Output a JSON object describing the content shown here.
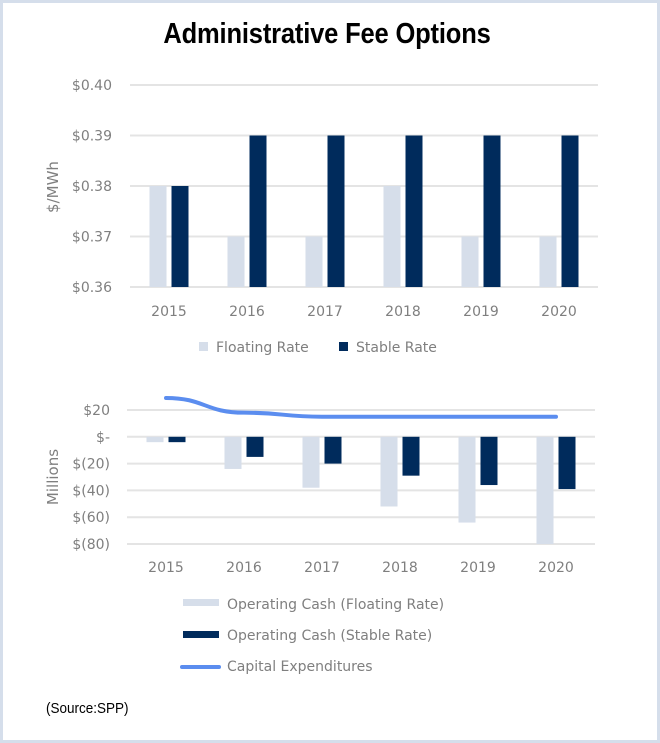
{
  "title": "Administrative Fee Options",
  "source": "(Source:SPP)",
  "colors": {
    "floating": "#d6deea",
    "stable": "#002b5c",
    "capex": "#5b8def",
    "grid": "#e4e4e4",
    "text": "#7f7f7f"
  },
  "chart_data": [
    {
      "type": "bar",
      "title": "Administrative Fee Options",
      "xlabel": "",
      "ylabel": "$/MWh",
      "categories": [
        "2015",
        "2016",
        "2017",
        "2018",
        "2019",
        "2020"
      ],
      "ylim": [
        0.36,
        0.4
      ],
      "yticks": [
        0.4,
        0.39,
        0.38,
        0.37,
        0.36
      ],
      "ytick_labels": [
        "$0.40",
        "$0.39",
        "$0.38",
        "$0.37",
        "$0.36"
      ],
      "grid": true,
      "legend_position": "bottom",
      "series": [
        {
          "name": "Floating Rate",
          "values": [
            0.38,
            0.37,
            0.37,
            0.38,
            0.37,
            0.37
          ]
        },
        {
          "name": "Stable Rate",
          "values": [
            0.38,
            0.39,
            0.39,
            0.39,
            0.39,
            0.39
          ]
        }
      ]
    },
    {
      "type": "bar",
      "xlabel": "",
      "ylabel": "Millions",
      "categories": [
        "2015",
        "2016",
        "2017",
        "2018",
        "2019",
        "2020"
      ],
      "ylim": [
        -80,
        20
      ],
      "yticks": [
        20,
        0,
        -20,
        -40,
        -60,
        -80
      ],
      "ytick_labels": [
        "$20",
        "$-",
        "$(20)",
        "$(40)",
        "$(60)",
        "$(80)"
      ],
      "grid": true,
      "legend_position": "bottom",
      "series": [
        {
          "name": "Operating Cash (Floating Rate)",
          "kind": "bar",
          "values": [
            -4,
            -24,
            -38,
            -52,
            -64,
            -80
          ]
        },
        {
          "name": "Operating Cash (Stable Rate)",
          "kind": "bar",
          "values": [
            -4,
            -15,
            -20,
            -29,
            -36,
            -39
          ]
        },
        {
          "name": "Capital Expenditures",
          "kind": "line",
          "values": [
            29,
            18,
            15,
            15,
            15,
            15
          ]
        }
      ]
    }
  ]
}
